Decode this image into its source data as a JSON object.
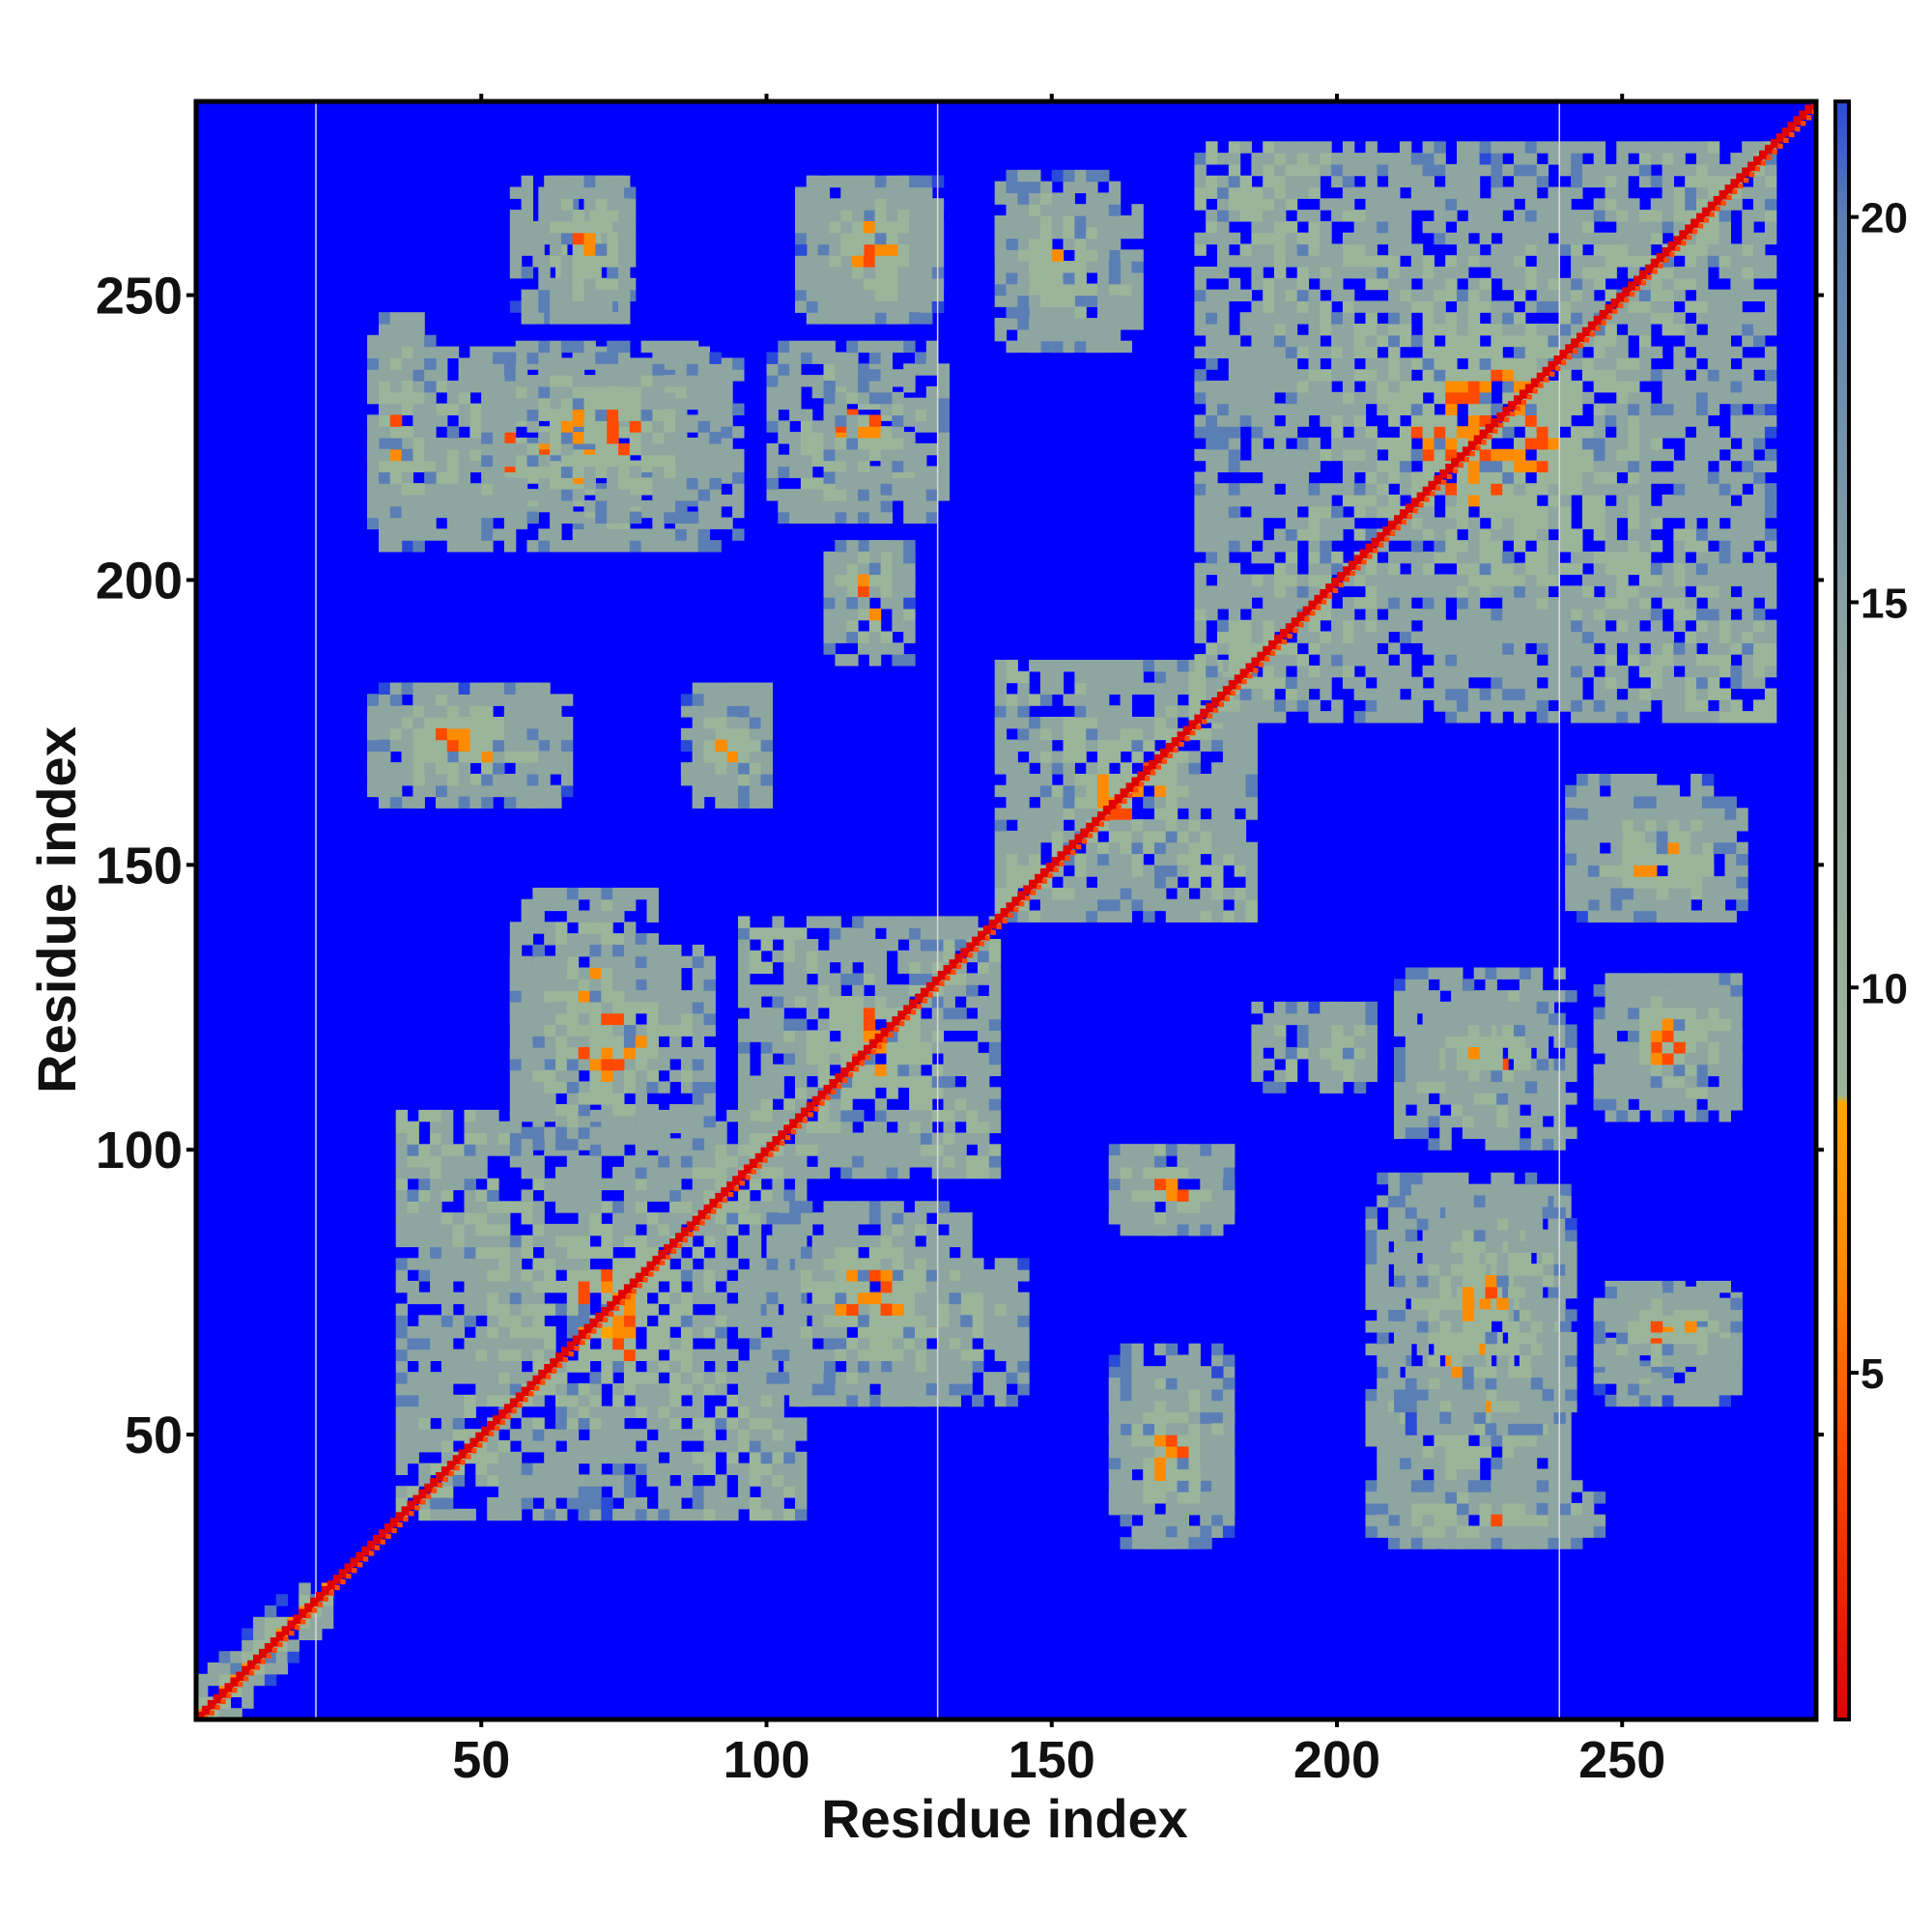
{
  "chart_data": {
    "type": "heatmap",
    "title": "",
    "xlabel": "Residue index",
    "ylabel": "Residue index",
    "xlim": [
      0,
      284
    ],
    "ylim": [
      0,
      284
    ],
    "x_ticks": [
      50,
      100,
      150,
      200,
      250
    ],
    "y_ticks": [
      50,
      100,
      150,
      200,
      250
    ],
    "x_tick_labels": [
      "50",
      "100",
      "150",
      "200",
      "250"
    ],
    "y_tick_labels": [
      "50",
      "100",
      "150",
      "200",
      "250"
    ],
    "vertical_guide_lines_x": [
      21,
      130,
      239
    ],
    "colorbar": {
      "range": [
        0.5,
        21.5
      ],
      "ticks": [
        5,
        10,
        15,
        20
      ],
      "tick_labels": [
        "5",
        "10",
        "15",
        "20"
      ],
      "stops": [
        {
          "value": 0.5,
          "color": "#e00000"
        },
        {
          "value": 4.0,
          "color": "#ff4a00"
        },
        {
          "value": 6.5,
          "color": "#ff8c00"
        },
        {
          "value": 8.5,
          "color": "#ffa500"
        },
        {
          "value": 8.6,
          "color": "#9ab59a"
        },
        {
          "value": 14.0,
          "color": "#8ea6a0"
        },
        {
          "value": 20.0,
          "color": "#5b7fb5"
        },
        {
          "value": 21.5,
          "color": "#2a4ad8"
        }
      ],
      "background_color": "#0000ff"
    },
    "diagonal": {
      "value": 1.0
    },
    "contact_regions": [
      {
        "x": [
          0,
          22
        ],
        "y": [
          0,
          22
        ],
        "kind": "diag"
      },
      {
        "x": [
          35,
          105
        ],
        "y": [
          35,
          105
        ],
        "kind": "block"
      },
      {
        "x": [
          95,
          140
        ],
        "y": [
          95,
          140
        ],
        "kind": "block"
      },
      {
        "x": [
          140,
          185
        ],
        "y": [
          140,
          185
        ],
        "kind": "block"
      },
      {
        "x": [
          175,
          275
        ],
        "y": [
          175,
          275
        ],
        "kind": "block"
      },
      {
        "x": [
          55,
          80
        ],
        "y": [
          110,
          145
        ],
        "kind": "cross"
      },
      {
        "x": [
          100,
          135
        ],
        "y": [
          55,
          90
        ],
        "kind": "cross"
      },
      {
        "x": [
          30,
          65
        ],
        "y": [
          160,
          180
        ],
        "kind": "cross"
      },
      {
        "x": [
          85,
          100
        ],
        "y": [
          160,
          180
        ],
        "kind": "cross"
      },
      {
        "x": [
          30,
          95
        ],
        "y": [
          205,
          240
        ],
        "kind": "cross"
      },
      {
        "x": [
          100,
          130
        ],
        "y": [
          210,
          240
        ],
        "kind": "cross"
      },
      {
        "x": [
          55,
          75
        ],
        "y": [
          245,
          270
        ],
        "kind": "cross"
      },
      {
        "x": [
          105,
          130
        ],
        "y": [
          245,
          270
        ],
        "kind": "cross"
      },
      {
        "x": [
          110,
          125
        ],
        "y": [
          185,
          205
        ],
        "kind": "cross"
      },
      {
        "x": [
          140,
          165
        ],
        "y": [
          240,
          265
        ],
        "kind": "cross"
      },
      {
        "x": [
          160,
          180
        ],
        "y": [
          30,
          60
        ],
        "kind": "cross"
      },
      {
        "x": [
          160,
          180
        ],
        "y": [
          85,
          100
        ],
        "kind": "cross"
      },
      {
        "x": [
          195,
          205
        ],
        "y": [
          110,
          125
        ],
        "kind": "cross"
      },
      {
        "x": [
          215,
          235
        ],
        "y": [
          110,
          125
        ],
        "kind": "cross"
      },
      {
        "x": [
          245,
          270
        ],
        "y": [
          105,
          130
        ],
        "kind": "cross"
      },
      {
        "x": [
          210,
          240
        ],
        "y": [
          50,
          90
        ],
        "kind": "cross"
      },
      {
        "x": [
          245,
          270
        ],
        "y": [
          60,
          75
        ],
        "kind": "cross"
      },
      {
        "x": [
          205,
          245
        ],
        "y": [
          30,
          40
        ],
        "kind": "cross"
      },
      {
        "x": [
          240,
          270
        ],
        "y": [
          140,
          160
        ],
        "kind": "cross"
      }
    ]
  }
}
